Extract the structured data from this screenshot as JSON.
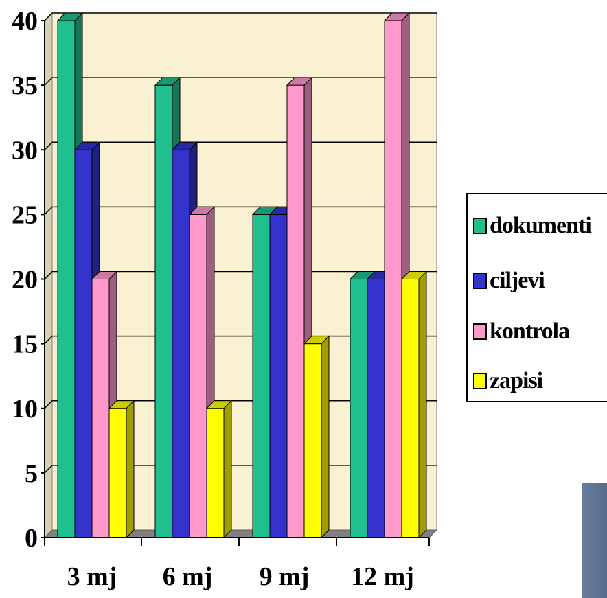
{
  "chart_data": {
    "type": "bar",
    "categories": [
      "3 mj",
      "6 mj",
      "9 mj",
      "12 mj"
    ],
    "series": [
      {
        "name": "dokumenti",
        "values": [
          40,
          35,
          25,
          20
        ],
        "color": "#1fbf8f"
      },
      {
        "name": "ciljevi",
        "values": [
          30,
          30,
          25,
          20
        ],
        "color": "#3333cc"
      },
      {
        "name": "kontrola",
        "values": [
          20,
          25,
          35,
          40
        ],
        "color": "#ff99cc"
      },
      {
        "name": "zapisi",
        "values": [
          10,
          10,
          15,
          20
        ],
        "color": "#ffff00"
      }
    ],
    "ylim": [
      0,
      40
    ],
    "yticks": [
      0,
      5,
      10,
      15,
      20,
      25,
      30,
      35,
      40
    ],
    "grid": true,
    "legend_position": "right",
    "plot_background": "#faf0d2"
  }
}
